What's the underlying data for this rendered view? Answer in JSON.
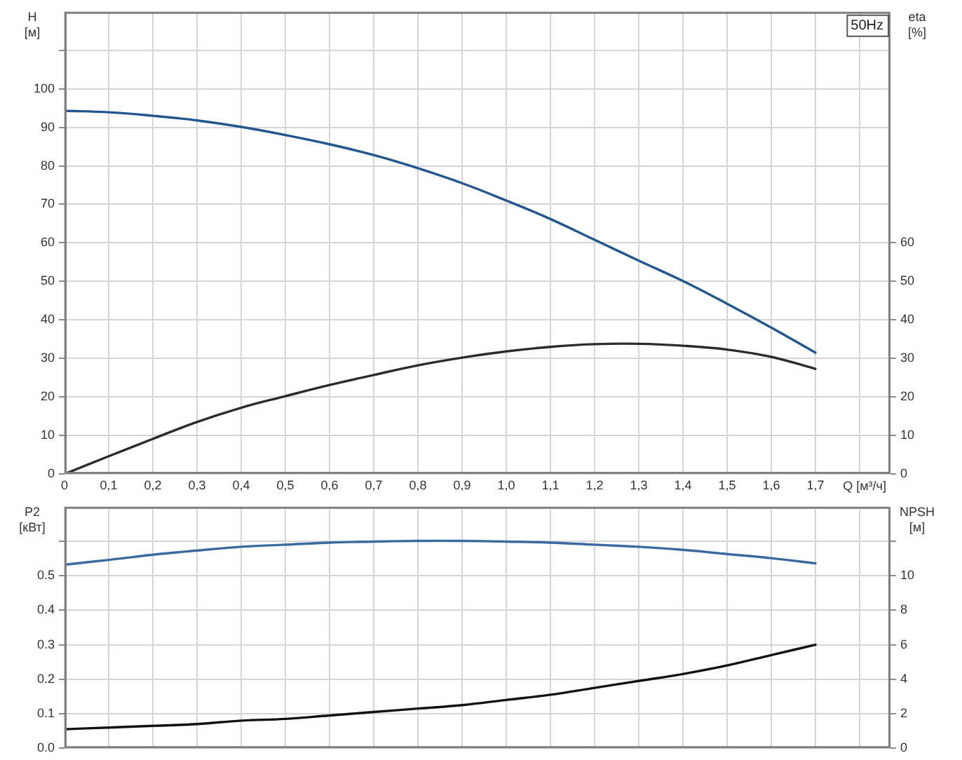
{
  "chart_data": [
    {
      "type": "line",
      "ylabel": "H [м]",
      "y2label": "eta [%]",
      "xlabel": "Q [м³/ч]",
      "annotations": [
        "50Hz"
      ],
      "x": [
        0,
        0.1,
        0.2,
        0.3,
        0.4,
        0.5,
        0.6,
        0.7,
        0.8,
        0.9,
        1.0,
        1.1,
        1.2,
        1.3,
        1.4,
        1.5,
        1.6,
        1.7
      ],
      "series": [
        {
          "color": "#23568f",
          "values": [
            94.3,
            93.9,
            93.0,
            91.8,
            90.1,
            88.0,
            85.6,
            82.8,
            79.4,
            75.5,
            71.0,
            66.2,
            60.8,
            55.4,
            50.1,
            44.2,
            38.0,
            31.5
          ]
        },
        {
          "color": "#2b2b2b",
          "axis": "y2",
          "values": [
            0,
            4.6,
            9.1,
            13.5,
            17.2,
            20.2,
            23.1,
            25.7,
            28.2,
            30.2,
            31.8,
            33.0,
            33.7,
            33.8,
            33.3,
            32.3,
            30.4,
            27.3
          ]
        }
      ],
      "xlim": [
        0,
        1.87
      ],
      "xticks": [
        0,
        {
          "value": 0.1,
          "label": "0,1"
        },
        {
          "value": 0.2,
          "label": "0,2"
        },
        {
          "value": 0.3,
          "label": "0,3"
        },
        {
          "value": 0.4,
          "label": "0,4"
        },
        {
          "value": 0.5,
          "label": "0,5"
        },
        {
          "value": 0.6,
          "label": "0,6"
        },
        {
          "value": 0.7,
          "label": "0,7"
        },
        {
          "value": 0.8,
          "label": "0,8"
        },
        {
          "value": 0.9,
          "label": "0,9"
        },
        {
          "value": 1.0,
          "label": "1,0"
        },
        {
          "value": 1.1,
          "label": "1,1"
        },
        {
          "value": 1.2,
          "label": "1,2"
        },
        {
          "value": 1.3,
          "label": "1,3"
        },
        {
          "value": 1.4,
          "label": "1,4"
        },
        {
          "value": 1.5,
          "label": "1,5"
        },
        {
          "value": 1.6,
          "label": "1,6"
        },
        {
          "value": 1.7,
          "label": "1,7"
        },
        {
          "value": 1.8,
          "label": null
        }
      ],
      "ylim": [
        0,
        120
      ],
      "yticks": [
        0,
        10,
        20,
        30,
        40,
        50,
        60,
        70,
        80,
        90,
        100,
        {
          "value": 110,
          "label": null
        }
      ],
      "y2lim": [
        0,
        120
      ],
      "y2ticks": [
        0,
        10,
        20,
        30,
        40,
        50,
        60
      ],
      "grid": true
    },
    {
      "type": "line",
      "ylabel": "P2 [кВт]",
      "y2label": "NPSH [м]",
      "x": [
        0,
        0.1,
        0.2,
        0.3,
        0.4,
        0.5,
        0.6,
        0.7,
        0.8,
        0.9,
        1.0,
        1.1,
        1.2,
        1.3,
        1.4,
        1.5,
        1.6,
        1.7
      ],
      "series": [
        {
          "color": "#3a6aa0",
          "values": [
            0.532,
            0.546,
            0.561,
            0.573,
            0.584,
            0.59,
            0.596,
            0.599,
            0.601,
            0.601,
            0.599,
            0.596,
            0.59,
            0.584,
            0.575,
            0.563,
            0.551,
            0.536
          ]
        },
        {
          "color": "#111111",
          "axis": "y2",
          "values": [
            1.1,
            1.2,
            1.3,
            1.4,
            1.6,
            1.7,
            1.9,
            2.1,
            2.3,
            2.5,
            2.8,
            3.1,
            3.5,
            3.9,
            4.3,
            4.8,
            5.4,
            6.0
          ]
        }
      ],
      "xlim": [
        0,
        1.87
      ],
      "xticks": [
        0,
        0.1,
        0.2,
        0.3,
        0.4,
        0.5,
        0.6,
        0.7,
        0.8,
        0.9,
        1.0,
        1.1,
        1.2,
        1.3,
        1.4,
        1.5,
        1.6,
        1.7,
        1.8
      ],
      "ylim": [
        0,
        0.7
      ],
      "yticks": [
        {
          "value": 0,
          "label": "0.0"
        },
        {
          "value": 0.1,
          "label": "0.1"
        },
        {
          "value": 0.2,
          "label": "0.2"
        },
        {
          "value": 0.3,
          "label": "0.3"
        },
        {
          "value": 0.4,
          "label": "0.4"
        },
        {
          "value": 0.5,
          "label": "0.5"
        },
        {
          "value": 0.6,
          "label": null
        }
      ],
      "y2lim": [
        0,
        14
      ],
      "y2ticks": [
        0,
        2,
        4,
        6,
        8,
        10,
        {
          "value": 12,
          "label": null
        }
      ],
      "grid": true,
      "tick_labels": "y"
    }
  ]
}
